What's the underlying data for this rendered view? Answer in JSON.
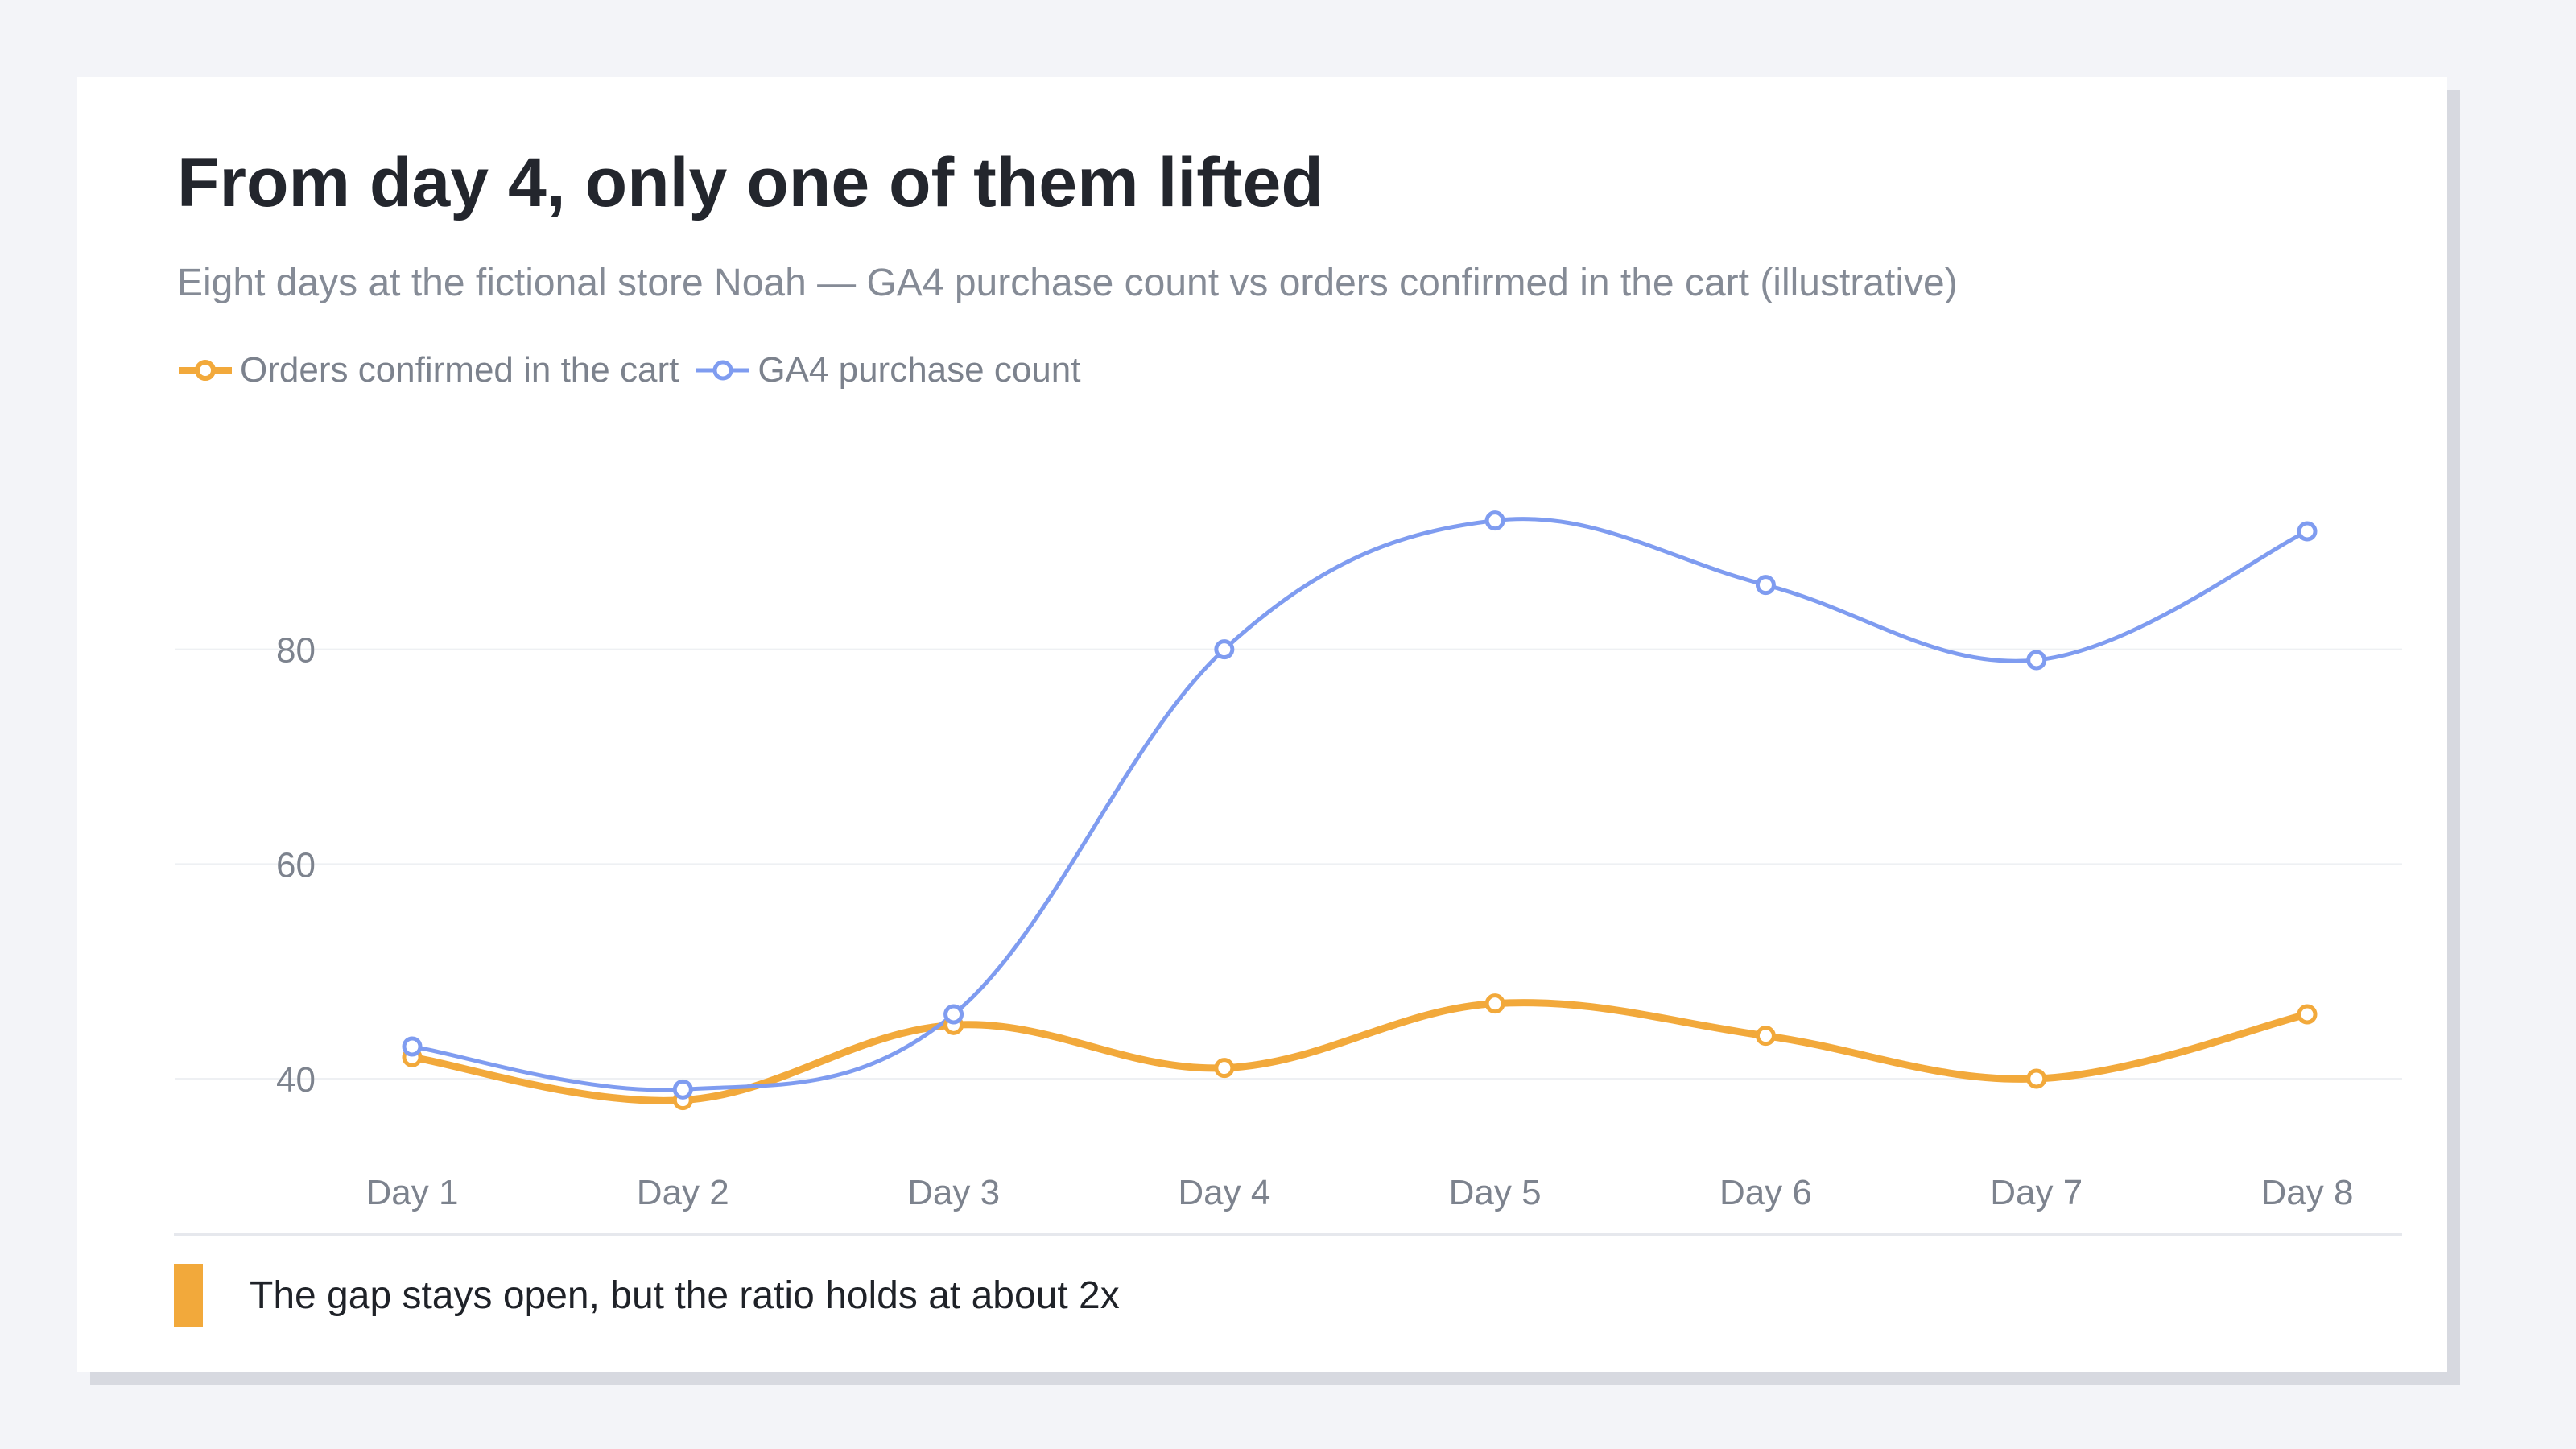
{
  "title": "From day 4, only one of them lifted",
  "subtitle": "Eight days at the fictional store Noah — GA4 purchase count vs orders confirmed in the cart (illustrative)",
  "note": "The gap stays open, but the ratio holds at about 2x",
  "colors": {
    "orders": "#f2a93b",
    "ga4": "#7f9cf0",
    "note_marker": "#f2a93b",
    "gridline": "#eef0f3"
  },
  "chart_data": {
    "type": "line",
    "x": [
      "Day 1",
      "Day 2",
      "Day 3",
      "Day 4",
      "Day 5",
      "Day 6",
      "Day 7",
      "Day 8"
    ],
    "series": [
      {
        "name": "Orders confirmed in the cart",
        "color": "#f2a93b",
        "values": [
          42,
          38,
          45,
          41,
          47,
          44,
          40,
          46
        ]
      },
      {
        "name": "GA4 purchase count",
        "color": "#7f9cf0",
        "values": [
          43,
          39,
          46,
          80,
          92,
          86,
          79,
          91
        ]
      }
    ],
    "yticks": [
      40,
      60,
      80
    ],
    "ylim": [
      35.5,
      100
    ],
    "xlabel": "",
    "ylabel": "",
    "grid": true,
    "legend": "top-left",
    "smooth": true
  }
}
